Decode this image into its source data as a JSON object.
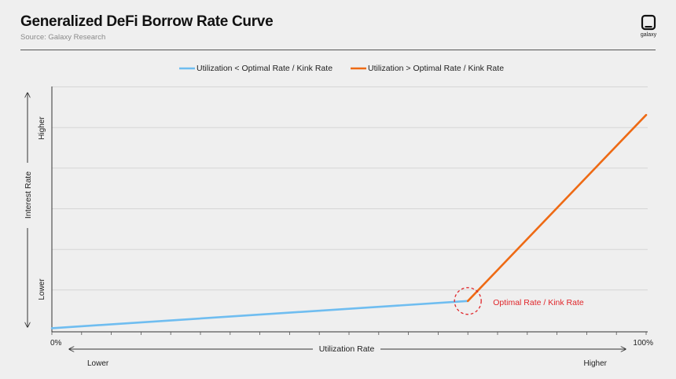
{
  "header": {
    "title": "Generalized DeFi Borrow Rate Curve",
    "source": "Source: Galaxy Research",
    "logo_text": "galaxy"
  },
  "colors": {
    "below_kink": "#6fbdf0",
    "above_kink": "#ee6a14",
    "kink_marker": "#e0262a",
    "grid": "#d6d6d6",
    "axis": "#333333"
  },
  "chart_data": {
    "type": "line",
    "title": "Generalized DeFi Borrow Rate Curve",
    "xlabel": "Utilization Rate",
    "ylabel": "Interest Rate",
    "x_unit": "%",
    "xlim": [
      0,
      100
    ],
    "ylim": [
      0,
      6
    ],
    "x_ticks": [
      "0%",
      "100%"
    ],
    "x_direction_labels": [
      "Lower",
      "Higher"
    ],
    "y_direction_labels": [
      "Lower",
      "Higher"
    ],
    "grid": true,
    "legend_position": "top-center",
    "series": [
      {
        "name": "Utilization < Optimal Rate / Kink Rate",
        "color": "#6fbdf0",
        "x": [
          0,
          70
        ],
        "y": [
          0.05,
          0.72
        ]
      },
      {
        "name": "Utilization > Optimal Rate / Kink Rate",
        "color": "#ee6a14",
        "x": [
          70,
          100
        ],
        "y": [
          0.72,
          5.3
        ]
      }
    ],
    "annotations": [
      {
        "text": "Optimal Rate / Kink Rate",
        "x": 70,
        "y": 0.72
      }
    ]
  }
}
